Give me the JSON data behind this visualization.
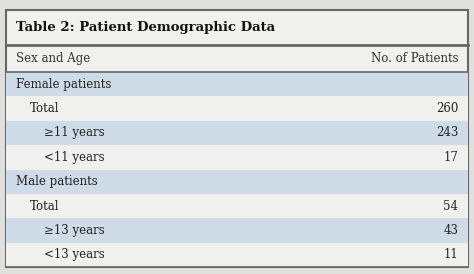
{
  "title": "Table 2: Patient Demographic Data",
  "col_headers": [
    "Sex and Age",
    "No. of Patients"
  ],
  "rows": [
    {
      "label": "Female patients",
      "value": "",
      "indent": 0,
      "shaded": true
    },
    {
      "label": "Total",
      "value": "260",
      "indent": 1,
      "shaded": false
    },
    {
      "label": "≥11 years",
      "value": "243",
      "indent": 2,
      "shaded": true
    },
    {
      "label": "<11 years",
      "value": "17",
      "indent": 2,
      "shaded": false
    },
    {
      "label": "Male patients",
      "value": "",
      "indent": 0,
      "shaded": true
    },
    {
      "label": "Total",
      "value": "54",
      "indent": 1,
      "shaded": false
    },
    {
      "label": "≥13 years",
      "value": "43",
      "indent": 2,
      "shaded": true
    },
    {
      "label": "<13 years",
      "value": "11",
      "indent": 2,
      "shaded": false
    }
  ],
  "shade_color": "#cfdce8",
  "white_color": "#f0f0ee",
  "title_fontsize": 9.5,
  "header_fontsize": 8.5,
  "row_fontsize": 8.5,
  "outer_bg": "#e0e0de",
  "table_bg": "#f0f0ee"
}
